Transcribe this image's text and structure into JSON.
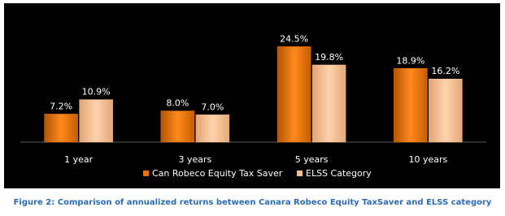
{
  "chart_data": {
    "type": "bar",
    "caption": "Figure 2: Comparison of annualized returns between Canara Robeco Equity TaxSaver and ELSS category",
    "categories": [
      "1 year",
      "3 years",
      "5 years",
      "10 years"
    ],
    "series": [
      {
        "name": "Can Robeco Equity Tax Saver",
        "color": "#e8720c",
        "values": [
          7.2,
          8.0,
          24.5,
          18.9
        ],
        "value_labels": [
          "7.2%",
          "8.0%",
          "24.5%",
          "18.9%"
        ]
      },
      {
        "name": "ELSS Category",
        "color": "#f9bf8f",
        "values": [
          10.9,
          7.0,
          19.8,
          16.2
        ],
        "value_labels": [
          "10.9%",
          "7.0%",
          "19.8%",
          "16.2%"
        ]
      }
    ],
    "legend": "bottom"
  }
}
